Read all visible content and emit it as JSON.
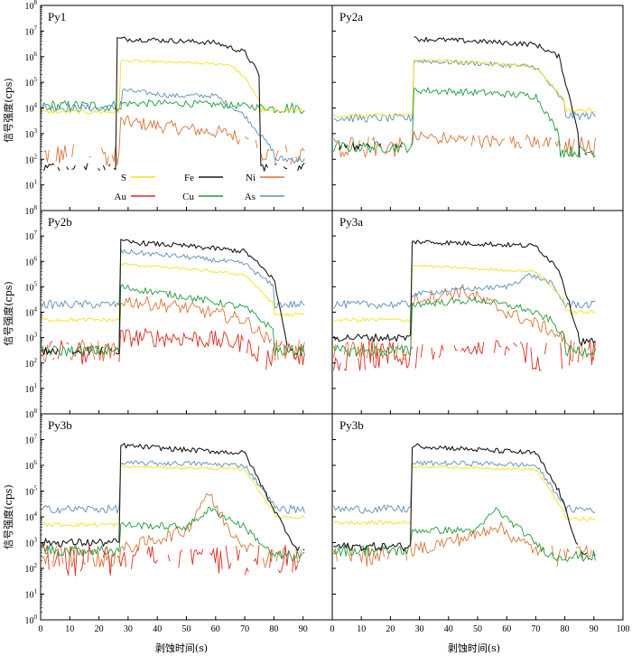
{
  "figure": {
    "ylabel": "信号强度(cps)",
    "xlabel": "剥蚀时间(s)"
  },
  "chart_data": {
    "type": "line",
    "yscale": "log",
    "ylim": [
      1,
      100000000
    ],
    "y_ticks": [
      {
        "base": "10",
        "exp": "0"
      },
      {
        "base": "10",
        "exp": "1"
      },
      {
        "base": "10",
        "exp": "2"
      },
      {
        "base": "10",
        "exp": "3"
      },
      {
        "base": "10",
        "exp": "4"
      },
      {
        "base": "10",
        "exp": "5"
      },
      {
        "base": "10",
        "exp": "6"
      },
      {
        "base": "10",
        "exp": "7"
      },
      {
        "base": "10",
        "exp": "8"
      }
    ],
    "x_ticks": [
      "0",
      "10",
      "20",
      "30",
      "40",
      "50",
      "60",
      "70",
      "80",
      "90",
      "100"
    ],
    "xlim": [
      0,
      100
    ],
    "legend": {
      "placement": "inside panel Py1, lower center",
      "entries": [
        {
          "label": "S",
          "color": "#f2e21a"
        },
        {
          "label": "Fe",
          "color": "#1a1a1a"
        },
        {
          "label": "Ni",
          "color": "#d9763a"
        },
        {
          "label": "Au",
          "color": "#e02b1f"
        },
        {
          "label": "Cu",
          "color": "#1f9a3a"
        },
        {
          "label": "As",
          "color": "#5b8fb5"
        }
      ]
    },
    "panels": [
      {
        "title": "Py1",
        "elements": {
          "Fe": {
            "bg": 50,
            "plateau": [
              [
                26,
                5000000
              ],
              [
                40,
                4500000
              ],
              [
                60,
                3500000
              ],
              [
                70,
                1500000
              ],
              [
                75,
                200000
              ]
            ],
            "post": 50
          },
          "S": {
            "bg": 7000,
            "plateau": [
              [
                27,
                700000
              ],
              [
                45,
                600000
              ],
              [
                65,
                500000
              ],
              [
                70,
                150000
              ],
              [
                75,
                20000
              ]
            ],
            "post": 8000
          },
          "As": {
            "bg": 10000,
            "plateau": [
              [
                28,
                50000
              ],
              [
                45,
                30000
              ],
              [
                60,
                30000
              ],
              [
                70,
                5000
              ],
              [
                80,
                200
              ]
            ],
            "post": 100
          },
          "Cu": {
            "bg": 12000,
            "plateau": [
              [
                27,
                15000
              ],
              [
                50,
                15000
              ],
              [
                70,
                12000
              ],
              [
                80,
                10000
              ]
            ],
            "post": 10000
          },
          "Ni": {
            "bg": 150,
            "plateau": [
              [
                27,
                3000
              ],
              [
                50,
                1500
              ],
              [
                65,
                1000
              ],
              [
                75,
                300
              ]
            ],
            "post": 150
          }
        }
      },
      {
        "title": "Py2a",
        "elements": {
          "Fe": {
            "bg": 300,
            "plateau": [
              [
                28,
                5000000
              ],
              [
                50,
                4000000
              ],
              [
                70,
                3000000
              ],
              [
                78,
                1000000
              ],
              [
                85,
                800
              ]
            ],
            "post": 150
          },
          "S": {
            "bg": 5000,
            "plateau": [
              [
                28,
                800000
              ],
              [
                50,
                600000
              ],
              [
                70,
                400000
              ],
              [
                80,
                20000
              ]
            ],
            "post": 8000
          },
          "As": {
            "bg": 4000,
            "plateau": [
              [
                28,
                700000
              ],
              [
                50,
                550000
              ],
              [
                70,
                400000
              ],
              [
                80,
                15000
              ]
            ],
            "post": 5000
          },
          "Cu": {
            "bg": 300,
            "plateau": [
              [
                28,
                50000
              ],
              [
                50,
                40000
              ],
              [
                70,
                30000
              ],
              [
                78,
                1000
              ]
            ],
            "post": 200
          },
          "Ni": {
            "bg": 300,
            "plateau": [
              [
                28,
                800
              ],
              [
                50,
                500
              ],
              [
                70,
                500
              ],
              [
                80,
                300
              ]
            ],
            "post": 300
          }
        }
      },
      {
        "title": "Py2b",
        "elements": {
          "Fe": {
            "bg": 300,
            "plateau": [
              [
                27,
                6000000
              ],
              [
                50,
                4000000
              ],
              [
                70,
                2500000
              ],
              [
                80,
                200000
              ],
              [
                85,
                300
              ]
            ],
            "post": 300
          },
          "As": {
            "bg": 20000,
            "plateau": [
              [
                27,
                2500000
              ],
              [
                50,
                1500000
              ],
              [
                70,
                800000
              ],
              [
                80,
                100000
              ]
            ],
            "post": 20000
          },
          "S": {
            "bg": 5000,
            "plateau": [
              [
                27,
                800000
              ],
              [
                50,
                500000
              ],
              [
                70,
                300000
              ],
              [
                80,
                20000
              ]
            ],
            "post": 8000
          },
          "Cu": {
            "bg": 300,
            "plateau": [
              [
                27,
                100000
              ],
              [
                50,
                40000
              ],
              [
                70,
                15000
              ],
              [
                80,
                2000
              ]
            ],
            "post": 300
          },
          "Ni": {
            "bg": 300,
            "plateau": [
              [
                27,
                30000
              ],
              [
                50,
                15000
              ],
              [
                70,
                5000
              ],
              [
                80,
                500
              ]
            ],
            "post": 300
          },
          "Au": {
            "bg": 200,
            "plateau": [
              [
                27,
                1000
              ],
              [
                50,
                1000
              ],
              [
                70,
                600
              ],
              [
                75,
                200
              ]
            ],
            "post": 200
          }
        }
      },
      {
        "title": "Py3a",
        "elements": {
          "Fe": {
            "bg": 1000,
            "plateau": [
              [
                27,
                6000000
              ],
              [
                50,
                5000000
              ],
              [
                70,
                4000000
              ],
              [
                78,
                500000
              ],
              [
                85,
                1000
              ]
            ],
            "post": 700
          },
          "S": {
            "bg": 5000,
            "plateau": [
              [
                27,
                700000
              ],
              [
                50,
                500000
              ],
              [
                70,
                400000
              ],
              [
                80,
                30000
              ]
            ],
            "post": 10000
          },
          "As": {
            "bg": 20000,
            "plateau": [
              [
                27,
                50000
              ],
              [
                45,
                80000
              ],
              [
                60,
                100000
              ],
              [
                68,
                300000
              ],
              [
                75,
                150000
              ],
              [
                80,
                20000
              ]
            ],
            "post": 20000
          },
          "Cu": {
            "bg": 300,
            "plateau": [
              [
                27,
                20000
              ],
              [
                50,
                30000
              ],
              [
                65,
                15000
              ],
              [
                75,
                5000
              ],
              [
                80,
                1000
              ]
            ],
            "post": 300
          },
          "Ni": {
            "bg": 300,
            "plateau": [
              [
                27,
                30000
              ],
              [
                45,
                70000
              ],
              [
                60,
                10000
              ],
              [
                75,
                2000
              ],
              [
                80,
                800
              ]
            ],
            "post": 300
          },
          "Au": {
            "bg": 200,
            "plateau": [
              [
                30,
                300
              ],
              [
                50,
                300
              ],
              [
                60,
                400
              ]
            ],
            "post": 200
          }
        }
      },
      {
        "title": "Py3b",
        "elements": {
          "Fe": {
            "bg": 1000,
            "plateau": [
              [
                27,
                6000000
              ],
              [
                50,
                4000000
              ],
              [
                70,
                3000000
              ],
              [
                80,
                20000
              ],
              [
                88,
                500
              ]
            ],
            "post": 500
          },
          "As": {
            "bg": 20000,
            "plateau": [
              [
                27,
                1200000
              ],
              [
                50,
                1200000
              ],
              [
                70,
                1000000
              ],
              [
                80,
                30000
              ]
            ],
            "post": 20000
          },
          "S": {
            "bg": 5000,
            "plateau": [
              [
                27,
                900000
              ],
              [
                50,
                800000
              ],
              [
                70,
                700000
              ],
              [
                80,
                15000
              ]
            ],
            "post": 10000
          },
          "Cu": {
            "bg": 500,
            "plateau": [
              [
                27,
                5000
              ],
              [
                50,
                4000
              ],
              [
                58,
                20000
              ],
              [
                70,
                4000
              ],
              [
                80,
                300
              ]
            ],
            "post": 300
          },
          "Ni": {
            "bg": 300,
            "plateau": [
              [
                27,
                500
              ],
              [
                50,
                3000
              ],
              [
                57,
                90000
              ],
              [
                65,
                3000
              ],
              [
                75,
                300
              ]
            ],
            "post": 300
          },
          "Au": {
            "bg": 200,
            "plateau": [
              [
                40,
                200
              ],
              [
                60,
                300
              ]
            ],
            "post": 200
          }
        }
      },
      {
        "title": "Py3b",
        "elements": {
          "Fe": {
            "bg": 700,
            "plateau": [
              [
                27,
                6000000
              ],
              [
                50,
                4000000
              ],
              [
                70,
                3000000
              ],
              [
                78,
                100000
              ],
              [
                85,
                500
              ]
            ],
            "post": 300
          },
          "As": {
            "bg": 20000,
            "plateau": [
              [
                27,
                1200000
              ],
              [
                50,
                1200000
              ],
              [
                70,
                1000000
              ],
              [
                80,
                30000
              ]
            ],
            "post": 20000
          },
          "S": {
            "bg": 6000,
            "plateau": [
              [
                27,
                900000
              ],
              [
                50,
                800000
              ],
              [
                70,
                700000
              ],
              [
                80,
                15000
              ]
            ],
            "post": 8000
          },
          "Cu": {
            "bg": 500,
            "plateau": [
              [
                27,
                3000
              ],
              [
                50,
                3000
              ],
              [
                56,
                20000
              ],
              [
                65,
                3000
              ],
              [
                75,
                300
              ]
            ],
            "post": 300
          },
          "Ni": {
            "bg": 300,
            "plateau": [
              [
                27,
                500
              ],
              [
                50,
                2000
              ],
              [
                56,
                5000
              ],
              [
                65,
                1000
              ],
              [
                75,
                300
              ]
            ],
            "post": 300
          }
        }
      }
    ]
  }
}
